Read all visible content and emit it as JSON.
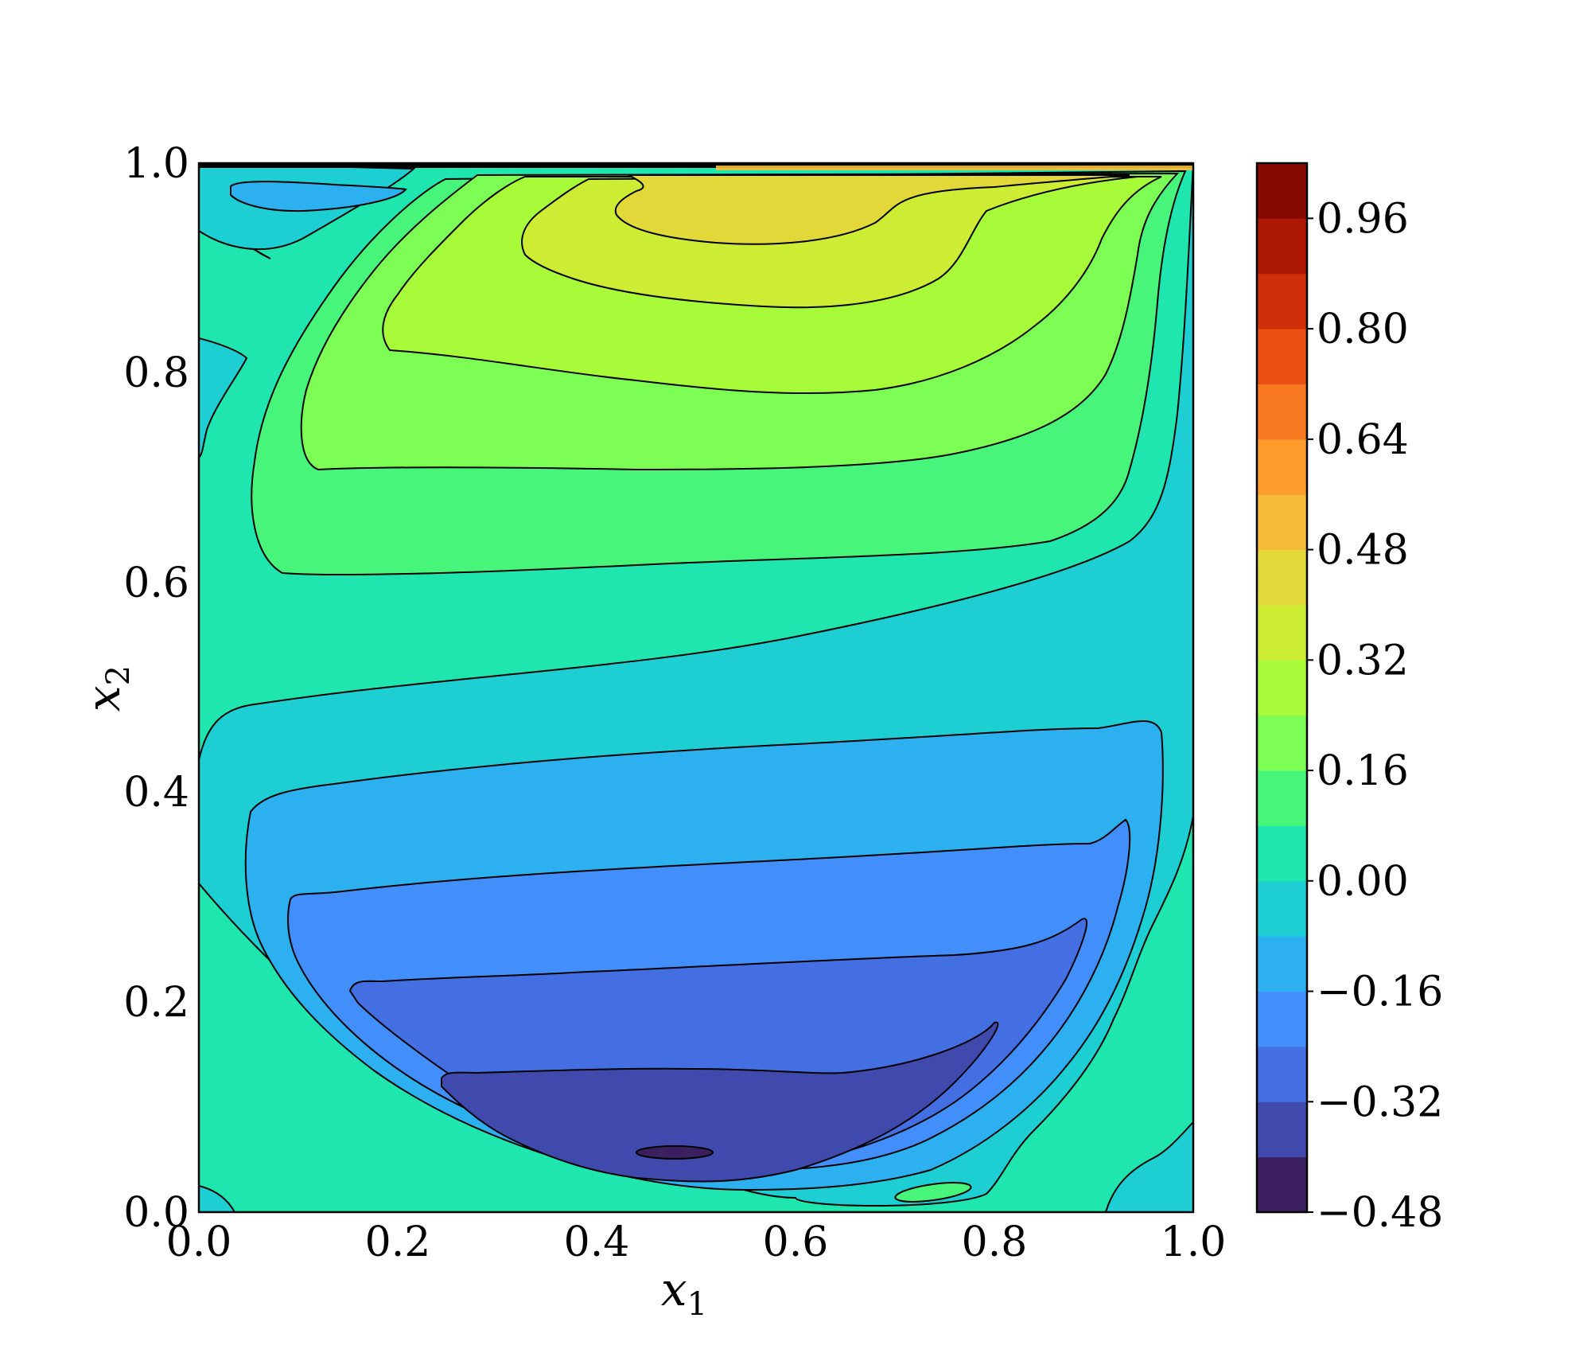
{
  "chart_data": {
    "type": "heatmap",
    "subtype": "filled-contour",
    "title": "",
    "xlabel": "x",
    "xlabel_subscript": "1",
    "ylabel": "x",
    "ylabel_subscript": "2",
    "xlim": [
      0.0,
      1.0
    ],
    "ylim": [
      0.0,
      1.0
    ],
    "x_ticks": [
      "0.0",
      "0.2",
      "0.4",
      "0.6",
      "0.8",
      "1.0"
    ],
    "y_ticks": [
      "0.0",
      "0.2",
      "0.4",
      "0.6",
      "0.8",
      "1.0"
    ],
    "colorbar": {
      "range": [
        -0.48,
        1.04
      ],
      "step": 0.08,
      "tick_values": [
        -0.48,
        -0.32,
        -0.16,
        0.0,
        0.16,
        0.32,
        0.48,
        0.64,
        0.8,
        0.96
      ],
      "tick_labels": [
        "−0.48",
        "−0.32",
        "−0.16",
        "0.00",
        "0.16",
        "0.32",
        "0.48",
        "0.64",
        "0.80",
        "0.96"
      ],
      "colors": [
        "#3b1f5f",
        "#404aad",
        "#446fe2",
        "#428ffb",
        "#2db0f0",
        "#1dcfd3",
        "#1ee6ae",
        "#47f57b",
        "#7dfe55",
        "#a8fb39",
        "#cdec34",
        "#e3d83a",
        "#f7bb3a",
        "#fd9d2e",
        "#f97920",
        "#e95012",
        "#d03009",
        "#ac1803",
        "#870a02"
      ]
    },
    "features": [
      {
        "name": "top-vortex-max",
        "x": 0.55,
        "y": 0.96,
        "value": 0.44
      },
      {
        "name": "bottom-vortex-min",
        "x": 0.48,
        "y": 0.06,
        "value": -0.44
      },
      {
        "name": "upper-left-corner-min",
        "x": 0.1,
        "y": 0.97,
        "value": -0.12
      },
      {
        "name": "bottom-right-small-max",
        "x": 0.73,
        "y": 0.02,
        "value": 0.12
      }
    ],
    "grid": false,
    "legend": "colorbar-right"
  }
}
